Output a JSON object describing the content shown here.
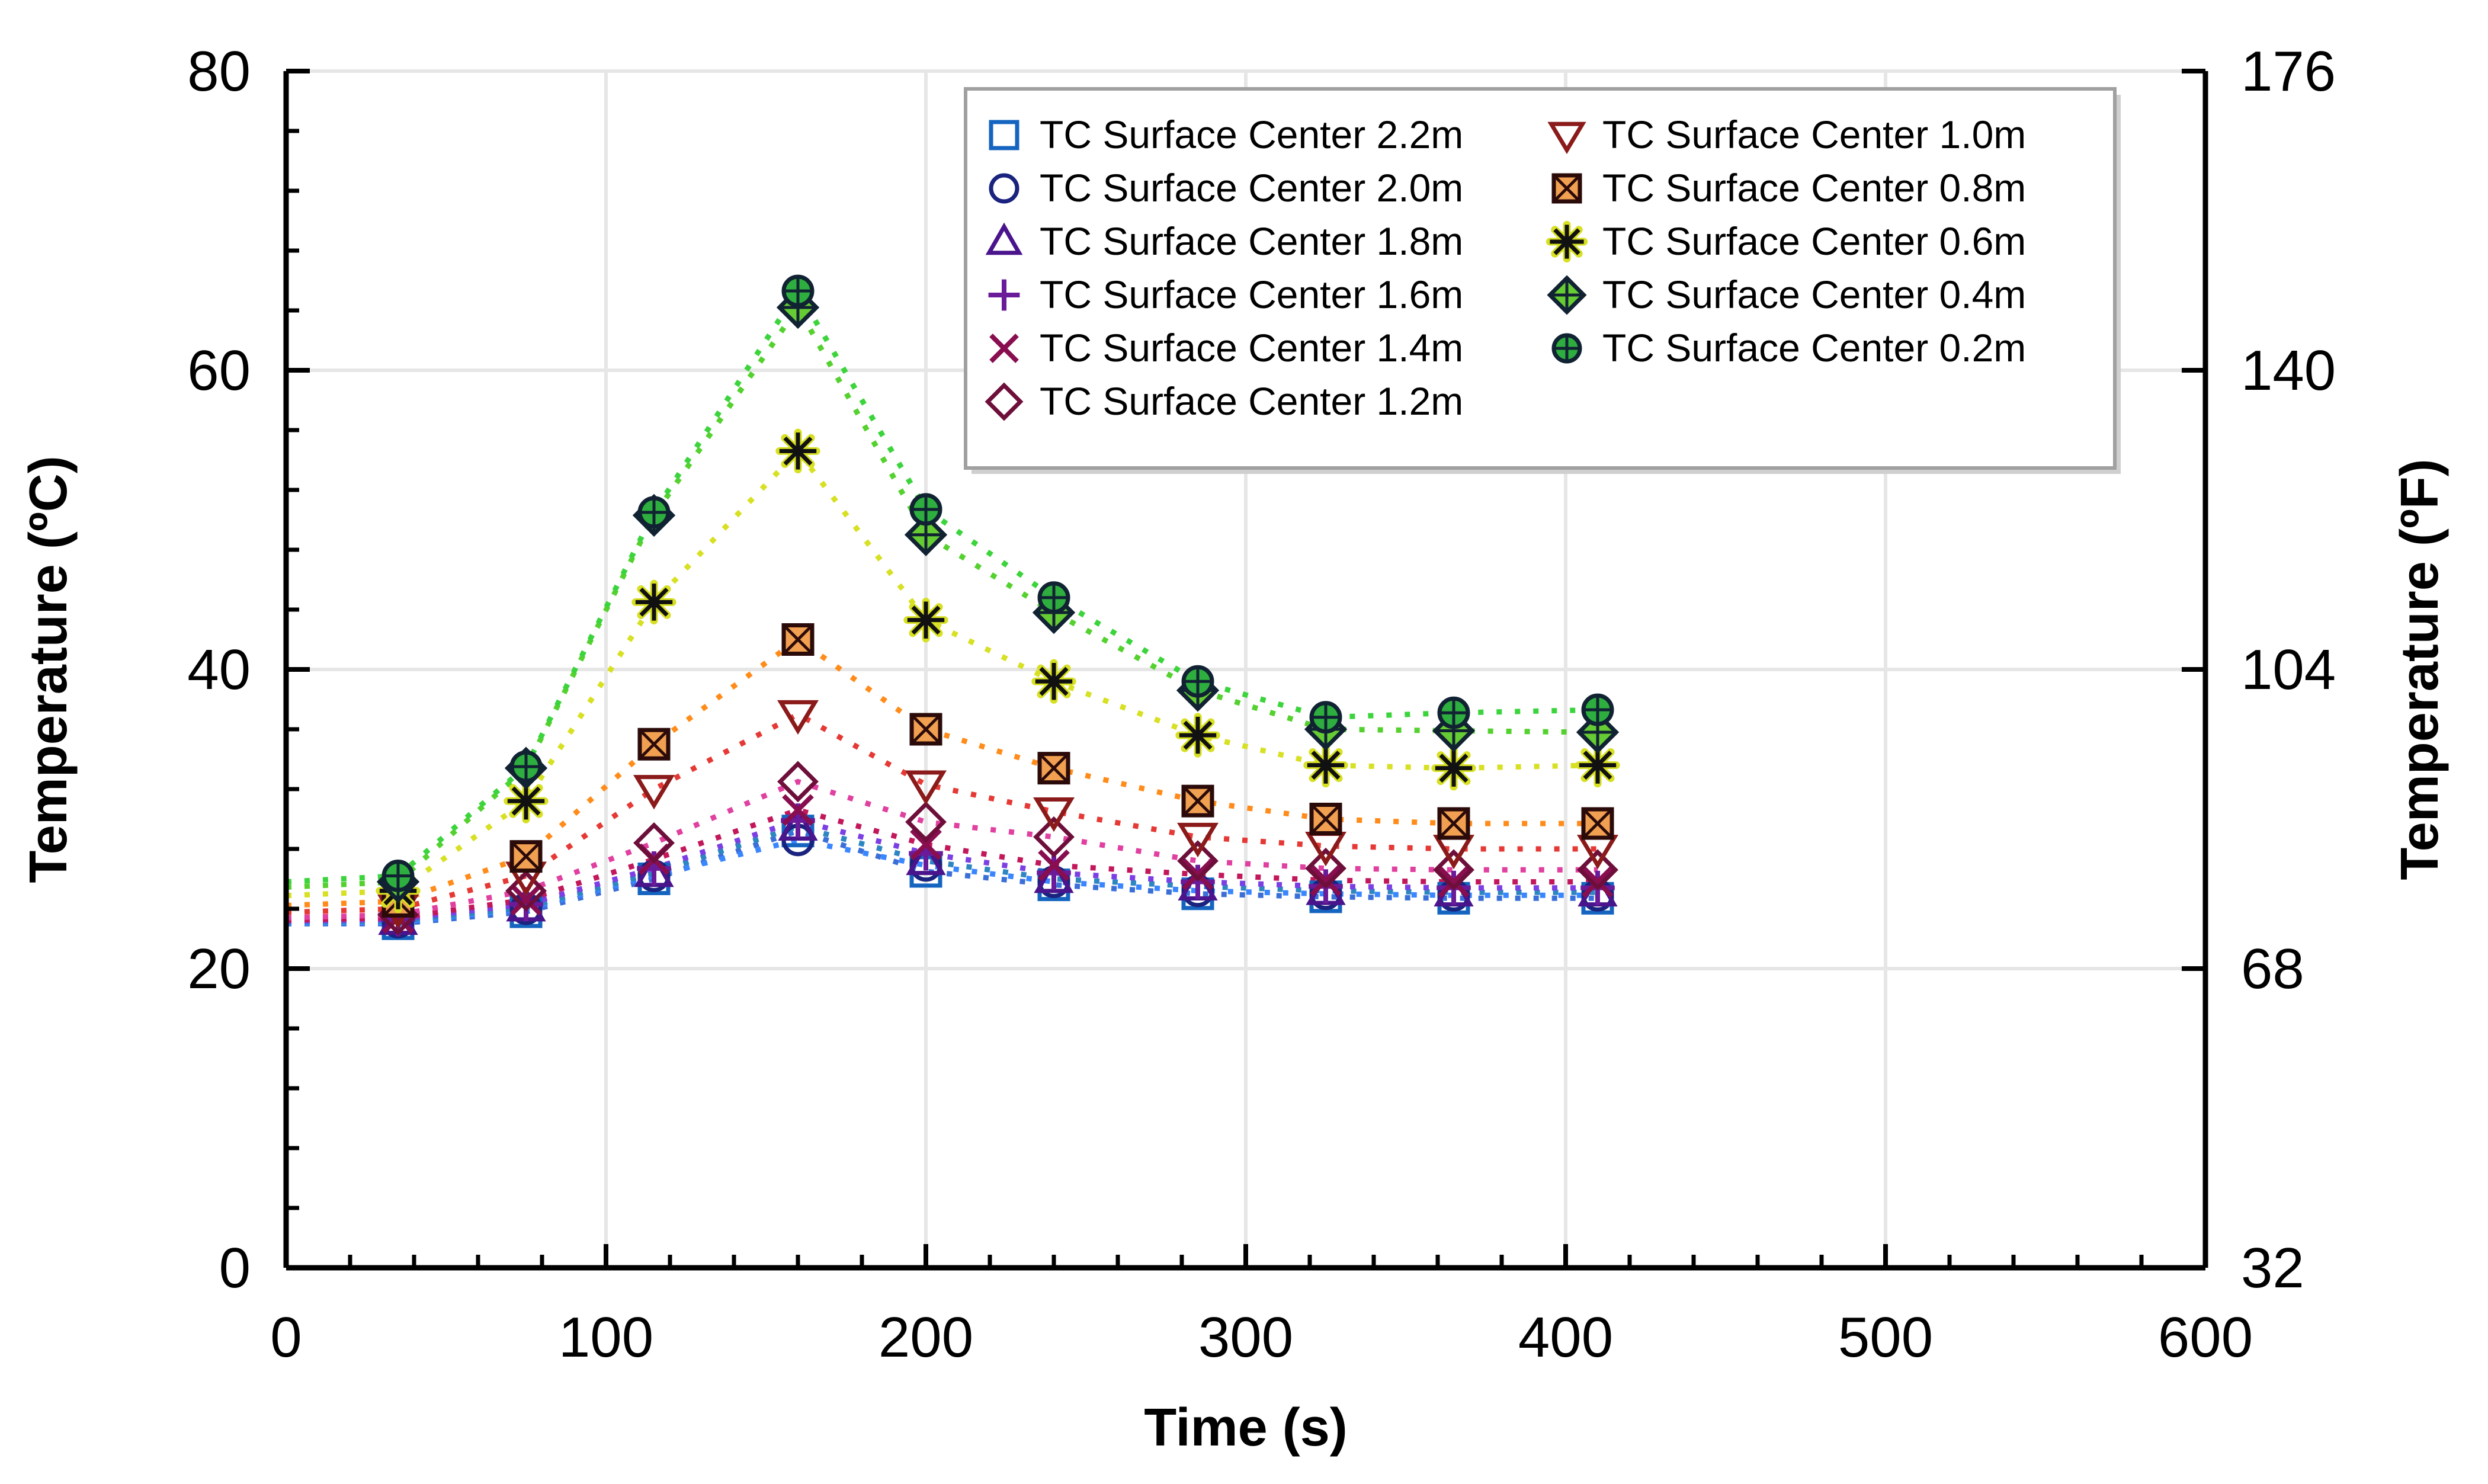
{
  "chart_data": {
    "type": "scatter",
    "xlabel": "Time (s)",
    "ylabel": "Temperature (ºC)",
    "y2label": "Temperature (ºF)",
    "xlim": [
      0,
      600
    ],
    "ylim": [
      0,
      80
    ],
    "y2lim": [
      32,
      176
    ],
    "xticks": [
      "0",
      "100",
      "200",
      "300",
      "400",
      "500",
      "600"
    ],
    "yticks": [
      "0",
      "20",
      "40",
      "60",
      "80"
    ],
    "y2ticks": [
      "32",
      "68",
      "104",
      "140",
      "176"
    ],
    "grid": true,
    "legend_position": "top-right",
    "x": [
      35,
      75,
      115,
      160,
      200,
      240,
      285,
      325,
      365,
      410
    ],
    "series": [
      {
        "name": "TC Surface Center 2.2m",
        "marker": "square",
        "color": "#1565c0",
        "line_color": "#3b6fd8",
        "values": [
          23.0,
          23.8,
          26.0,
          29.2,
          26.5,
          25.6,
          25.0,
          24.8,
          24.7,
          24.7
        ]
      },
      {
        "name": "TC Surface Center 2.0m",
        "marker": "circle",
        "color": "#1a237e",
        "line_color": "#3a86ff",
        "values": [
          23.1,
          24.0,
          26.2,
          28.6,
          26.9,
          25.8,
          25.2,
          25.0,
          24.9,
          24.9
        ]
      },
      {
        "name": "TC Surface Center 1.8m",
        "marker": "triangle-up",
        "color": "#4a148c",
        "line_color": "#2e86c1",
        "values": [
          23.2,
          24.1,
          26.4,
          29.5,
          27.2,
          26.0,
          25.5,
          25.2,
          25.1,
          25.1
        ]
      },
      {
        "name": "TC Surface Center 1.6m",
        "marker": "plus",
        "color": "#6a1b9a",
        "line_color": "#7b3fe4",
        "values": [
          23.3,
          24.3,
          26.7,
          29.9,
          27.7,
          26.4,
          25.8,
          25.5,
          25.4,
          25.4
        ]
      },
      {
        "name": "TC Surface Center 1.4m",
        "marker": "x",
        "color": "#880e4f",
        "line_color": "#c2185b",
        "values": [
          23.4,
          24.6,
          27.3,
          30.6,
          28.3,
          26.9,
          26.3,
          25.9,
          25.8,
          25.8
        ]
      },
      {
        "name": "TC Surface Center 1.2m",
        "marker": "diamond",
        "color": "#6d0f3a",
        "line_color": "#e040a0",
        "values": [
          23.6,
          25.2,
          28.4,
          32.5,
          29.8,
          28.8,
          27.2,
          26.7,
          26.6,
          26.6
        ]
      },
      {
        "name": "TC Surface Center 1.0m",
        "marker": "triangle-down",
        "color": "#8b1a1a",
        "line_color": "#e53935",
        "values": [
          24.0,
          26.2,
          32.0,
          37.0,
          32.3,
          30.5,
          28.8,
          28.2,
          28.0,
          28.0
        ]
      },
      {
        "name": "TC Surface Center 0.8m",
        "marker": "boxed-x",
        "color": "#f0a050",
        "line_color": "#ff8c1a",
        "values": [
          24.5,
          27.5,
          35.0,
          42.0,
          36.0,
          33.4,
          31.2,
          30.0,
          29.7,
          29.7
        ]
      },
      {
        "name": "TC Surface Center 0.6m",
        "marker": "asterisk",
        "color": "#111111",
        "line_color": "#d7e022",
        "values": [
          25.2,
          31.2,
          44.5,
          54.6,
          43.3,
          39.2,
          35.6,
          33.6,
          33.4,
          33.6
        ]
      },
      {
        "name": "TC Surface Center 0.4m",
        "marker": "diamond-plus",
        "color": "#66cc33",
        "line_color": "#55d12f",
        "values": [
          25.8,
          33.4,
          50.3,
          64.2,
          49.0,
          43.8,
          38.6,
          36.0,
          35.9,
          35.8
        ]
      },
      {
        "name": "TC Surface Center 0.2m",
        "marker": "circle-plus",
        "color": "#2eae3e",
        "line_color": "#3cd43c",
        "values": [
          26.2,
          33.5,
          50.5,
          65.3,
          50.7,
          44.8,
          39.2,
          36.8,
          37.1,
          37.3
        ]
      }
    ]
  }
}
